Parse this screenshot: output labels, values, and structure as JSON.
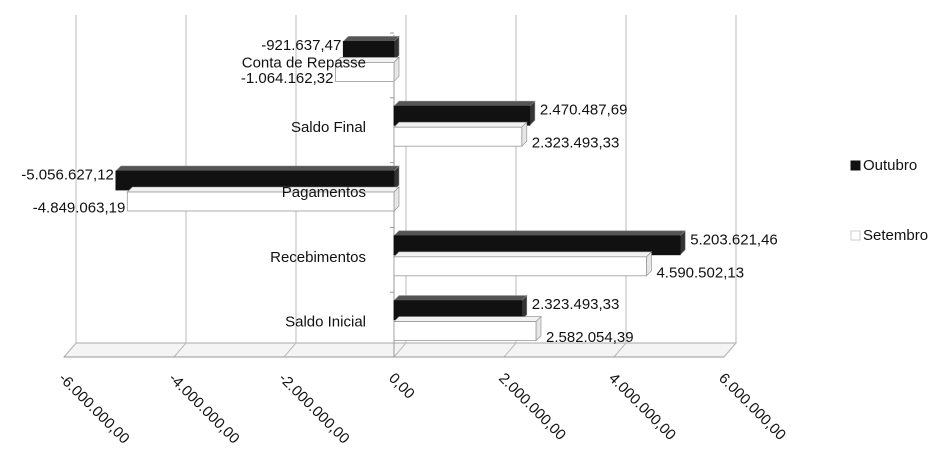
{
  "chart_data": {
    "type": "bar",
    "orientation": "horizontal",
    "categories": [
      "Saldo Inicial",
      "Recebimentos",
      "Pagamentos",
      "Saldo Final",
      "Conta de Repasse"
    ],
    "series": [
      {
        "name": "Outubro",
        "color": "#111111",
        "values": [
          2323493.33,
          5203621.46,
          -5056627.12,
          2470487.69,
          -921637.47
        ],
        "labels": [
          "2.323.493,33",
          "5.203.621,46",
          "-5.056.627,12",
          "2.470.487,69",
          "-921.637,47"
        ]
      },
      {
        "name": "Setembro",
        "color": "#ffffff",
        "values": [
          2582054.39,
          4590502.13,
          -4849063.19,
          2323493.33,
          -1064162.32
        ],
        "labels": [
          "2.582.054,39",
          "4.590.502,13",
          "-4.849.063,19",
          "2.323.493,33",
          "-1.064.162,32"
        ]
      }
    ],
    "xlim": [
      -6000000,
      6000000
    ],
    "x_ticks": [
      -6000000,
      -4000000,
      -2000000,
      0,
      2000000,
      4000000,
      6000000
    ],
    "x_tick_labels": [
      "-6.000.000,00",
      "-4.000.000,00",
      "-2.000.000,00",
      "0,00",
      "2.000.000,00",
      "4.000.000,00",
      "6.000.000,00"
    ],
    "grid": true,
    "legend": "right",
    "style": "3d"
  }
}
